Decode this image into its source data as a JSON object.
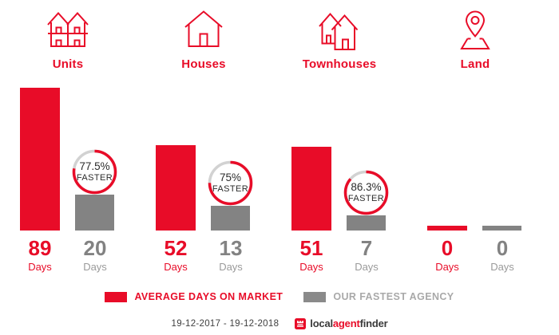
{
  "colors": {
    "red": "#e80c28",
    "gray_bar": "#838383",
    "ring_track": "#d2d2d2",
    "badge_text": "#2b2b2b",
    "legend_gray_text": "#a9a9a9",
    "unit_gray": "#9a9a9a",
    "footer_text": "#3e3e3e"
  },
  "header": {
    "categories": [
      {
        "label": "Units",
        "icon": "units-icon"
      },
      {
        "label": "Houses",
        "icon": "houses-icon"
      },
      {
        "label": "Townhouses",
        "icon": "townhouses-icon"
      },
      {
        "label": "Land",
        "icon": "land-icon"
      }
    ]
  },
  "chart_data": {
    "type": "bar",
    "categories": [
      "Units",
      "Houses",
      "Townhouses",
      "Land"
    ],
    "unit_label": "Days",
    "series": [
      {
        "name": "AVERAGE DAYS ON MARKET",
        "color": "#e80c28",
        "values": [
          89,
          52,
          51,
          0
        ]
      },
      {
        "name": "OUR FASTEST AGENCY",
        "color": "#838383",
        "values": [
          20,
          13,
          7,
          0
        ]
      }
    ],
    "badges": [
      {
        "percent_label": "77.5%",
        "percent_value": 77.5,
        "word": "FASTER"
      },
      {
        "percent_label": "75%",
        "percent_value": 75,
        "word": "FASTER"
      },
      {
        "percent_label": "86.3%",
        "percent_value": 86.3,
        "word": "FASTER"
      },
      null
    ],
    "ylim": [
      0,
      89
    ],
    "grid": false,
    "legend_position": "bottom"
  },
  "legend": {
    "items": [
      {
        "label": "AVERAGE DAYS ON MARKET",
        "color": "#e80c28"
      },
      {
        "label": "OUR FASTEST AGENCY",
        "color": "#8a8a8a"
      }
    ]
  },
  "footer": {
    "date_range": "19-12-2017 - 19-12-2018",
    "brand": {
      "part1": "local",
      "part2": "agent",
      "part3": "finder"
    }
  }
}
